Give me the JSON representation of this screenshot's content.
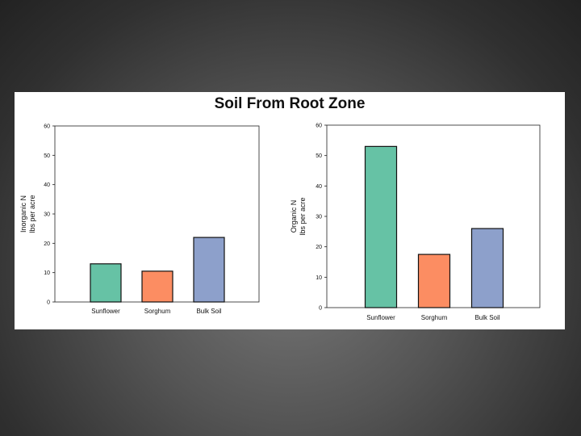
{
  "title": "Soil From Root Zone",
  "chart_data": [
    {
      "type": "bar",
      "categories": [
        "Sunflower",
        "Sorghum",
        "Bulk Soil"
      ],
      "values": [
        13,
        10.5,
        22
      ],
      "ylabel_lines": [
        "Inorganic N",
        "lbs per acre"
      ],
      "ylim": [
        0,
        60
      ],
      "yticks": [
        "0",
        "10",
        "20",
        "30",
        "40",
        "50",
        "60"
      ],
      "colors": [
        "#66c2a5",
        "#fc8d62",
        "#8da0cb"
      ],
      "grid": false
    },
    {
      "type": "bar",
      "categories": [
        "Sunflower",
        "Sorghum",
        "Bulk Soil"
      ],
      "values": [
        53,
        17.5,
        26
      ],
      "ylabel_lines": [
        "Organic N",
        "lbs per acre"
      ],
      "ylim": [
        0,
        60
      ],
      "yticks": [
        "0",
        "10",
        "20",
        "30",
        "40",
        "50",
        "60"
      ],
      "colors": [
        "#66c2a5",
        "#fc8d62",
        "#8da0cb"
      ],
      "grid": false
    }
  ]
}
